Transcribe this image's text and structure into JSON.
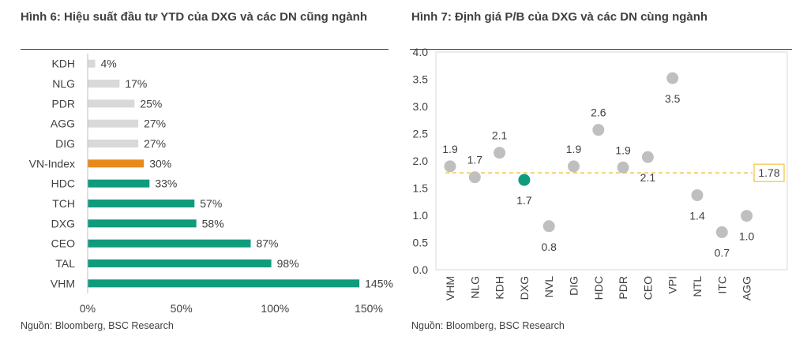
{
  "left_chart": {
    "title": "Hình 6: Hiệu suất đầu tư YTD của DXG và các DN cũng ngành",
    "source": "Nguồn: Bloomberg, BSC Research",
    "chart_data": {
      "type": "bar",
      "orientation": "horizontal",
      "title": "Hình 6: Hiệu suất đầu tư YTD của DXG và các DN cũng ngành",
      "categories": [
        "KDH",
        "NLG",
        "PDR",
        "AGG",
        "DIG",
        "VN-Index",
        "HDC",
        "TCH",
        "DXG",
        "CEO",
        "TAL",
        "VHM"
      ],
      "values": [
        4,
        17,
        25,
        27,
        27,
        30,
        33,
        57,
        58,
        87,
        98,
        145
      ],
      "value_labels": [
        "4%",
        "17%",
        "25%",
        "27%",
        "27%",
        "30%",
        "33%",
        "57%",
        "58%",
        "87%",
        "98%",
        "145%"
      ],
      "groups": [
        "grey",
        "grey",
        "grey",
        "grey",
        "grey",
        "orange",
        "teal",
        "teal",
        "teal",
        "teal",
        "teal",
        "teal"
      ],
      "colors": {
        "grey": "#d9d9d9",
        "orange": "#e8891b",
        "teal": "#0f9b7c"
      },
      "xlim": [
        0,
        150
      ],
      "xticks": [
        0,
        50,
        100,
        150
      ],
      "xtick_labels": [
        "0%",
        "50%",
        "100%",
        "150%"
      ],
      "xlabel": "",
      "ylabel": "",
      "grid": false
    }
  },
  "right_chart": {
    "title": "Hình 7: Định giá P/B của DXG và các DN cùng ngành",
    "source": "Nguồn: Bloomberg, BSC Research",
    "chart_data": {
      "type": "scatter",
      "title": "Hình 7: Định giá P/B của DXG và các DN cùng ngành",
      "categories": [
        "VHM",
        "NLG",
        "KDH",
        "DXG",
        "NVL",
        "DIG",
        "HDC",
        "PDR",
        "CEO",
        "VPI",
        "NTL",
        "ITC",
        "AGG"
      ],
      "values": [
        1.9,
        1.7,
        2.15,
        1.65,
        0.8,
        1.9,
        2.57,
        1.88,
        2.07,
        3.52,
        1.37,
        0.69,
        0.99
      ],
      "value_labels": [
        "1.9",
        "1.7",
        "2.1",
        "1.7",
        "0.8",
        "1.9",
        "2.6",
        "1.9",
        "2.1",
        "3.5",
        "1.4",
        "0.7",
        "1.0"
      ],
      "label_positions": [
        "above",
        "above",
        "above",
        "below",
        "below",
        "above",
        "above",
        "above",
        "below",
        "below",
        "below",
        "below",
        "below"
      ],
      "highlight": "DXG",
      "colors": {
        "point": "#bfbfbf",
        "highlight": "#0f9b7c",
        "average_line": "#f2c94c",
        "axis_box": "#d9d9d9"
      },
      "average": {
        "value": 1.78,
        "label": "1.78"
      },
      "ylim": [
        0,
        4
      ],
      "yticks": [
        0,
        0.5,
        1,
        1.5,
        2,
        2.5,
        3,
        3.5,
        4
      ],
      "ytick_labels": [
        "0.0",
        "0.5",
        "1.0",
        "1.5",
        "2.0",
        "2.5",
        "3.0",
        "3.5",
        "4.0"
      ],
      "xlabel": "",
      "ylabel": "",
      "grid": false
    }
  }
}
